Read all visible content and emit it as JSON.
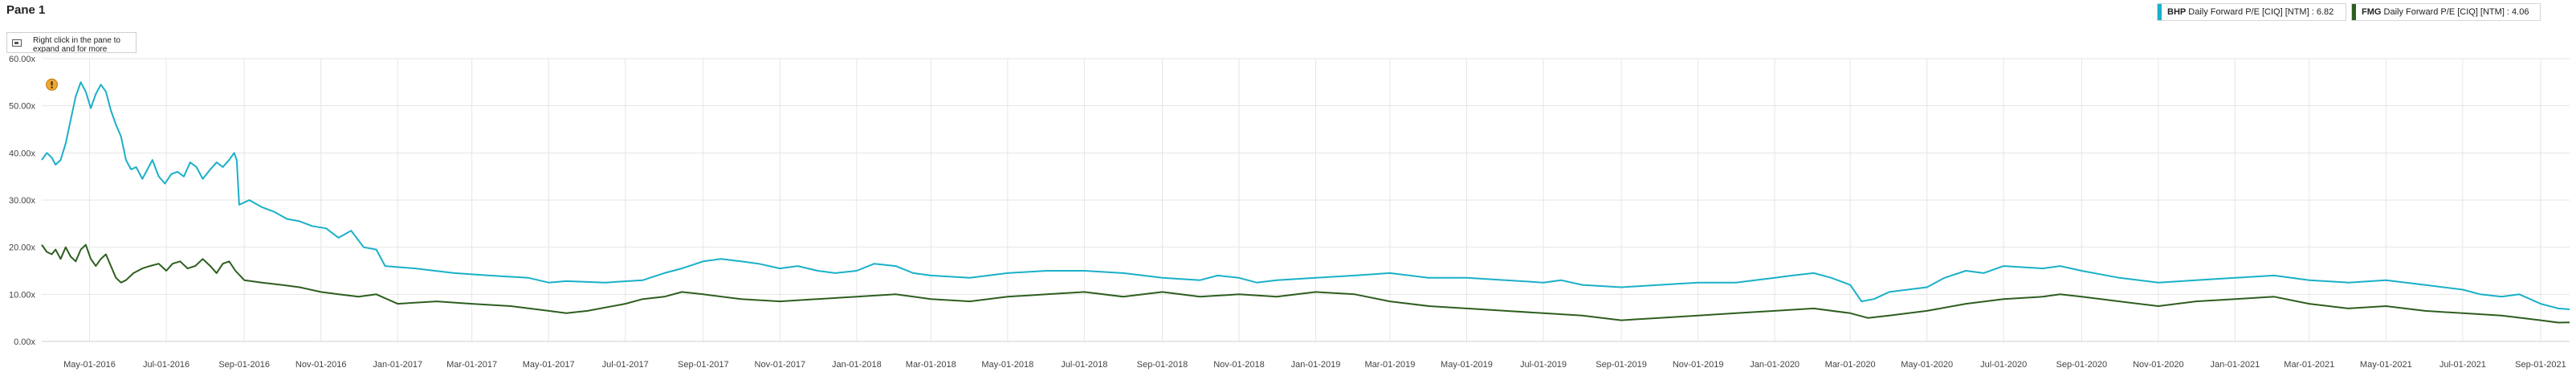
{
  "pane": {
    "title": "Pane 1",
    "hint": "Right click in the pane to expand and for more options",
    "hint_icon": "chart-window-icon"
  },
  "legend": [
    {
      "ticker": "BHP",
      "label": "Daily Forward P/E [CIQ] [NTM] : 6.82",
      "color": "#1ab0c8"
    },
    {
      "ticker": "FMG",
      "label": "Daily Forward P/E [CIQ] [NTM] : 4.06",
      "color": "#2e5e1f"
    }
  ],
  "chart_data": {
    "type": "line",
    "x_tick_labels": [
      "May-01-2016",
      "Jul-01-2016",
      "Sep-01-2016",
      "Nov-01-2016",
      "Jan-01-2017",
      "Mar-01-2017",
      "May-01-2017",
      "Jul-01-2017",
      "Sep-01-2017",
      "Nov-01-2017",
      "Jan-01-2018",
      "Mar-01-2018",
      "May-01-2018",
      "Jul-01-2018",
      "Sep-01-2018",
      "Nov-01-2018",
      "Jan-01-2019",
      "Mar-01-2019",
      "May-01-2019",
      "Jul-01-2019",
      "Sep-01-2019",
      "Nov-01-2019",
      "Jan-01-2020",
      "Mar-01-2020",
      "May-01-2020",
      "Jul-01-2020",
      "Sep-01-2020",
      "Nov-01-2020",
      "Jan-01-2021",
      "Mar-01-2021",
      "May-01-2021",
      "Jul-01-2021",
      "Sep-01-2021"
    ],
    "y_tick_labels": [
      "0.00x",
      "10.00x",
      "20.00x",
      "30.00x",
      "40.00x",
      "50.00x",
      "60.00x"
    ],
    "ylim": [
      0,
      60
    ],
    "xlim": [
      "2016-03-24",
      "2021-09-24"
    ],
    "grid": true,
    "annotation": {
      "date": "2016-04-01",
      "value": 54.5,
      "color": "#f0a830"
    },
    "series": [
      {
        "name": "BHP",
        "color": "#1ab0c8",
        "points": [
          [
            "2016-03-24",
            38.5
          ],
          [
            "2016-03-28",
            40.0
          ],
          [
            "2016-04-01",
            39.0
          ],
          [
            "2016-04-04",
            37.5
          ],
          [
            "2016-04-08",
            38.5
          ],
          [
            "2016-04-12",
            42.0
          ],
          [
            "2016-04-16",
            47.0
          ],
          [
            "2016-04-20",
            52.0
          ],
          [
            "2016-04-24",
            55.0
          ],
          [
            "2016-04-28",
            53.0
          ],
          [
            "2016-05-02",
            49.5
          ],
          [
            "2016-05-06",
            52.5
          ],
          [
            "2016-05-10",
            54.5
          ],
          [
            "2016-05-14",
            53.0
          ],
          [
            "2016-05-18",
            49.0
          ],
          [
            "2016-05-22",
            46.0
          ],
          [
            "2016-05-26",
            43.5
          ],
          [
            "2016-05-30",
            38.5
          ],
          [
            "2016-06-03",
            36.5
          ],
          [
            "2016-06-07",
            37.0
          ],
          [
            "2016-06-12",
            34.5
          ],
          [
            "2016-06-16",
            36.5
          ],
          [
            "2016-06-20",
            38.5
          ],
          [
            "2016-06-25",
            35.0
          ],
          [
            "2016-06-30",
            33.5
          ],
          [
            "2016-07-05",
            35.5
          ],
          [
            "2016-07-10",
            36.0
          ],
          [
            "2016-07-15",
            35.0
          ],
          [
            "2016-07-20",
            38.0
          ],
          [
            "2016-07-25",
            37.0
          ],
          [
            "2016-07-30",
            34.5
          ],
          [
            "2016-08-05",
            36.5
          ],
          [
            "2016-08-10",
            38.0
          ],
          [
            "2016-08-15",
            37.0
          ],
          [
            "2016-08-20",
            38.5
          ],
          [
            "2016-08-24",
            40.0
          ],
          [
            "2016-08-26",
            38.5
          ],
          [
            "2016-08-28",
            29.0
          ],
          [
            "2016-09-05",
            30.0
          ],
          [
            "2016-09-15",
            28.5
          ],
          [
            "2016-09-25",
            27.5
          ],
          [
            "2016-10-05",
            26.0
          ],
          [
            "2016-10-15",
            25.5
          ],
          [
            "2016-10-25",
            24.5
          ],
          [
            "2016-11-05",
            24.0
          ],
          [
            "2016-11-15",
            22.0
          ],
          [
            "2016-11-25",
            23.5
          ],
          [
            "2016-12-05",
            20.0
          ],
          [
            "2016-12-15",
            19.5
          ],
          [
            "2016-12-22",
            16.0
          ],
          [
            "2017-01-15",
            15.5
          ],
          [
            "2017-02-15",
            14.5
          ],
          [
            "2017-03-15",
            14.0
          ],
          [
            "2017-04-15",
            13.5
          ],
          [
            "2017-05-01",
            12.5
          ],
          [
            "2017-05-15",
            12.8
          ],
          [
            "2017-06-15",
            12.5
          ],
          [
            "2017-07-15",
            13.0
          ],
          [
            "2017-08-01",
            14.5
          ],
          [
            "2017-08-15",
            15.5
          ],
          [
            "2017-09-01",
            17.0
          ],
          [
            "2017-09-15",
            17.5
          ],
          [
            "2017-10-01",
            17.0
          ],
          [
            "2017-10-15",
            16.5
          ],
          [
            "2017-11-01",
            15.5
          ],
          [
            "2017-11-15",
            16.0
          ],
          [
            "2017-12-01",
            15.0
          ],
          [
            "2017-12-15",
            14.5
          ],
          [
            "2018-01-01",
            15.0
          ],
          [
            "2018-01-15",
            16.5
          ],
          [
            "2018-02-01",
            16.0
          ],
          [
            "2018-02-15",
            14.5
          ],
          [
            "2018-03-01",
            14.0
          ],
          [
            "2018-04-01",
            13.5
          ],
          [
            "2018-05-01",
            14.5
          ],
          [
            "2018-06-01",
            15.0
          ],
          [
            "2018-07-01",
            15.0
          ],
          [
            "2018-08-01",
            14.5
          ],
          [
            "2018-09-01",
            13.5
          ],
          [
            "2018-10-01",
            13.0
          ],
          [
            "2018-10-15",
            14.0
          ],
          [
            "2018-11-01",
            13.5
          ],
          [
            "2018-11-15",
            12.5
          ],
          [
            "2018-12-01",
            13.0
          ],
          [
            "2019-01-01",
            13.5
          ],
          [
            "2019-02-01",
            14.0
          ],
          [
            "2019-03-01",
            14.5
          ],
          [
            "2019-04-01",
            13.5
          ],
          [
            "2019-05-01",
            13.5
          ],
          [
            "2019-06-01",
            13.0
          ],
          [
            "2019-07-01",
            12.5
          ],
          [
            "2019-07-15",
            13.0
          ],
          [
            "2019-08-01",
            12.0
          ],
          [
            "2019-09-01",
            11.5
          ],
          [
            "2019-10-01",
            12.0
          ],
          [
            "2019-11-01",
            12.5
          ],
          [
            "2019-12-01",
            12.5
          ],
          [
            "2020-01-01",
            13.5
          ],
          [
            "2020-01-15",
            14.0
          ],
          [
            "2020-02-01",
            14.5
          ],
          [
            "2020-02-15",
            13.5
          ],
          [
            "2020-03-01",
            12.0
          ],
          [
            "2020-03-10",
            8.5
          ],
          [
            "2020-03-20",
            9.0
          ],
          [
            "2020-04-01",
            10.5
          ],
          [
            "2020-05-01",
            11.5
          ],
          [
            "2020-05-15",
            13.5
          ],
          [
            "2020-06-01",
            15.0
          ],
          [
            "2020-06-15",
            14.5
          ],
          [
            "2020-07-01",
            16.0
          ],
          [
            "2020-08-01",
            15.5
          ],
          [
            "2020-08-15",
            16.0
          ],
          [
            "2020-09-01",
            15.0
          ],
          [
            "2020-10-01",
            13.5
          ],
          [
            "2020-11-01",
            12.5
          ],
          [
            "2020-12-01",
            13.0
          ],
          [
            "2021-01-01",
            13.5
          ],
          [
            "2021-02-01",
            14.0
          ],
          [
            "2021-03-01",
            13.0
          ],
          [
            "2021-04-01",
            12.5
          ],
          [
            "2021-05-01",
            13.0
          ],
          [
            "2021-06-01",
            12.0
          ],
          [
            "2021-07-01",
            11.0
          ],
          [
            "2021-07-15",
            10.0
          ],
          [
            "2021-08-01",
            9.5
          ],
          [
            "2021-08-15",
            10.0
          ],
          [
            "2021-09-01",
            8.0
          ],
          [
            "2021-09-15",
            7.0
          ],
          [
            "2021-09-24",
            6.82
          ]
        ]
      },
      {
        "name": "FMG",
        "color": "#2e5e1f",
        "points": [
          [
            "2016-03-24",
            20.5
          ],
          [
            "2016-03-28",
            19.0
          ],
          [
            "2016-04-01",
            18.5
          ],
          [
            "2016-04-04",
            19.5
          ],
          [
            "2016-04-08",
            17.5
          ],
          [
            "2016-04-12",
            20.0
          ],
          [
            "2016-04-16",
            18.0
          ],
          [
            "2016-04-20",
            17.0
          ],
          [
            "2016-04-24",
            19.5
          ],
          [
            "2016-04-28",
            20.5
          ],
          [
            "2016-05-02",
            17.5
          ],
          [
            "2016-05-06",
            16.0
          ],
          [
            "2016-05-10",
            17.5
          ],
          [
            "2016-05-14",
            18.5
          ],
          [
            "2016-05-18",
            16.0
          ],
          [
            "2016-05-22",
            13.5
          ],
          [
            "2016-05-26",
            12.5
          ],
          [
            "2016-05-30",
            13.0
          ],
          [
            "2016-06-05",
            14.5
          ],
          [
            "2016-06-12",
            15.5
          ],
          [
            "2016-06-18",
            16.0
          ],
          [
            "2016-06-25",
            16.5
          ],
          [
            "2016-07-01",
            15.0
          ],
          [
            "2016-07-06",
            16.5
          ],
          [
            "2016-07-12",
            17.0
          ],
          [
            "2016-07-18",
            15.5
          ],
          [
            "2016-07-24",
            16.0
          ],
          [
            "2016-07-30",
            17.5
          ],
          [
            "2016-08-05",
            16.0
          ],
          [
            "2016-08-10",
            14.5
          ],
          [
            "2016-08-15",
            16.5
          ],
          [
            "2016-08-20",
            17.0
          ],
          [
            "2016-08-25",
            15.0
          ],
          [
            "2016-09-01",
            13.0
          ],
          [
            "2016-09-15",
            12.5
          ],
          [
            "2016-10-01",
            12.0
          ],
          [
            "2016-10-15",
            11.5
          ],
          [
            "2016-11-01",
            10.5
          ],
          [
            "2016-11-15",
            10.0
          ],
          [
            "2016-12-01",
            9.5
          ],
          [
            "2016-12-15",
            10.0
          ],
          [
            "2017-01-01",
            8.0
          ],
          [
            "2017-02-01",
            8.5
          ],
          [
            "2017-03-01",
            8.0
          ],
          [
            "2017-04-01",
            7.5
          ],
          [
            "2017-05-01",
            6.5
          ],
          [
            "2017-05-15",
            6.0
          ],
          [
            "2017-06-01",
            6.5
          ],
          [
            "2017-07-01",
            8.0
          ],
          [
            "2017-07-15",
            9.0
          ],
          [
            "2017-08-01",
            9.5
          ],
          [
            "2017-08-15",
            10.5
          ],
          [
            "2017-09-01",
            10.0
          ],
          [
            "2017-10-01",
            9.0
          ],
          [
            "2017-11-01",
            8.5
          ],
          [
            "2017-12-01",
            9.0
          ],
          [
            "2018-01-01",
            9.5
          ],
          [
            "2018-02-01",
            10.0
          ],
          [
            "2018-03-01",
            9.0
          ],
          [
            "2018-04-01",
            8.5
          ],
          [
            "2018-05-01",
            9.5
          ],
          [
            "2018-06-01",
            10.0
          ],
          [
            "2018-07-01",
            10.5
          ],
          [
            "2018-08-01",
            9.5
          ],
          [
            "2018-09-01",
            10.5
          ],
          [
            "2018-10-01",
            9.5
          ],
          [
            "2018-11-01",
            10.0
          ],
          [
            "2018-12-01",
            9.5
          ],
          [
            "2019-01-01",
            10.5
          ],
          [
            "2019-02-01",
            10.0
          ],
          [
            "2019-03-01",
            8.5
          ],
          [
            "2019-04-01",
            7.5
          ],
          [
            "2019-05-01",
            7.0
          ],
          [
            "2019-06-01",
            6.5
          ],
          [
            "2019-07-01",
            6.0
          ],
          [
            "2019-08-01",
            5.5
          ],
          [
            "2019-09-01",
            4.5
          ],
          [
            "2019-10-01",
            5.0
          ],
          [
            "2019-11-01",
            5.5
          ],
          [
            "2019-12-01",
            6.0
          ],
          [
            "2020-01-01",
            6.5
          ],
          [
            "2020-02-01",
            7.0
          ],
          [
            "2020-03-01",
            6.0
          ],
          [
            "2020-03-15",
            5.0
          ],
          [
            "2020-04-01",
            5.5
          ],
          [
            "2020-05-01",
            6.5
          ],
          [
            "2020-06-01",
            8.0
          ],
          [
            "2020-07-01",
            9.0
          ],
          [
            "2020-08-01",
            9.5
          ],
          [
            "2020-08-15",
            10.0
          ],
          [
            "2020-09-01",
            9.5
          ],
          [
            "2020-10-01",
            8.5
          ],
          [
            "2020-11-01",
            7.5
          ],
          [
            "2020-12-01",
            8.5
          ],
          [
            "2021-01-01",
            9.0
          ],
          [
            "2021-02-01",
            9.5
          ],
          [
            "2021-03-01",
            8.0
          ],
          [
            "2021-04-01",
            7.0
          ],
          [
            "2021-05-01",
            7.5
          ],
          [
            "2021-06-01",
            6.5
          ],
          [
            "2021-07-01",
            6.0
          ],
          [
            "2021-08-01",
            5.5
          ],
          [
            "2021-09-01",
            4.5
          ],
          [
            "2021-09-15",
            4.0
          ],
          [
            "2021-09-24",
            4.06
          ]
        ]
      }
    ]
  }
}
